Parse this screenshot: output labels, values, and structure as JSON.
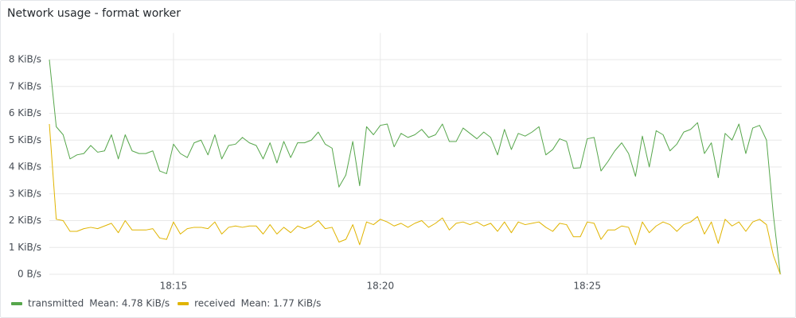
{
  "chart_data": {
    "type": "line",
    "title": "Network usage - format worker",
    "x": [
      720,
      730,
      740,
      750,
      760,
      770,
      780,
      790,
      800,
      810,
      820,
      830,
      840,
      850,
      860,
      870,
      880,
      890,
      900,
      910,
      920,
      930,
      940,
      950,
      960,
      970,
      980,
      990,
      1000,
      1010,
      1020,
      1030,
      1040,
      1050,
      1060,
      1070,
      1080,
      1090,
      1100,
      1110,
      1120,
      1130,
      1140,
      1150,
      1160,
      1170,
      1180,
      1190,
      1200,
      1210,
      1220,
      1230,
      1240,
      1250,
      1260,
      1270,
      1280,
      1290,
      1300,
      1310,
      1320,
      1330,
      1340,
      1350,
      1360,
      1370,
      1380,
      1390,
      1400,
      1410,
      1420,
      1430,
      1440,
      1450,
      1460,
      1470,
      1480,
      1490,
      1500,
      1510,
      1520,
      1530,
      1540,
      1550,
      1560,
      1570,
      1580,
      1590,
      1600,
      1610,
      1620,
      1630,
      1640,
      1650,
      1660,
      1670,
      1680,
      1690,
      1700,
      1710,
      1720,
      1730,
      1740,
      1750,
      1760,
      1770,
      1780
    ],
    "xlim": [
      720,
      1782
    ],
    "xticks": [
      {
        "value": 900,
        "label": "18:15"
      },
      {
        "value": 1200,
        "label": "18:20"
      },
      {
        "value": 1500,
        "label": "18:25"
      }
    ],
    "ylim": [
      0,
      8.4
    ],
    "yticks": [
      {
        "value": 0,
        "label": "0 B/s"
      },
      {
        "value": 1,
        "label": "1 KiB/s"
      },
      {
        "value": 2,
        "label": "2 KiB/s"
      },
      {
        "value": 3,
        "label": "3 KiB/s"
      },
      {
        "value": 4,
        "label": "4 KiB/s"
      },
      {
        "value": 5,
        "label": "5 KiB/s"
      },
      {
        "value": 6,
        "label": "6 KiB/s"
      },
      {
        "value": 7,
        "label": "7 KiB/s"
      },
      {
        "value": 8,
        "label": "8 KiB/s"
      }
    ],
    "grid": true,
    "legend": "bottom-left",
    "series": [
      {
        "name": "transmitted",
        "legend_stat": "Mean: 4.78 KiB/s",
        "color": "#56a64b",
        "values": [
          8.0,
          5.5,
          5.2,
          4.3,
          4.45,
          4.5,
          4.8,
          4.55,
          4.6,
          5.2,
          4.3,
          5.2,
          4.6,
          4.5,
          4.5,
          4.6,
          3.85,
          3.75,
          4.85,
          4.5,
          4.35,
          4.9,
          5.0,
          4.45,
          5.2,
          4.3,
          4.8,
          4.85,
          5.1,
          4.9,
          4.8,
          4.3,
          4.9,
          4.15,
          4.95,
          4.35,
          4.9,
          4.9,
          5.0,
          5.3,
          4.85,
          4.7,
          3.25,
          3.7,
          4.95,
          3.3,
          5.5,
          5.2,
          5.55,
          5.6,
          4.75,
          5.25,
          5.1,
          5.2,
          5.4,
          5.1,
          5.2,
          5.6,
          4.95,
          4.95,
          5.45,
          5.25,
          5.05,
          5.3,
          5.1,
          4.45,
          5.4,
          4.65,
          5.25,
          5.15,
          5.3,
          5.5,
          4.45,
          4.65,
          5.05,
          4.95,
          3.95,
          3.97,
          5.05,
          5.1,
          3.85,
          4.2,
          4.6,
          4.9,
          4.5,
          3.65,
          5.15,
          4.0,
          5.35,
          5.2,
          4.6,
          4.85,
          5.3,
          5.4,
          5.65,
          4.5,
          4.9,
          3.6,
          5.25,
          5.0,
          5.6,
          4.5,
          5.45,
          5.55,
          5.0,
          2.2,
          0.0
        ]
      },
      {
        "name": "received",
        "legend_stat": "Mean: 1.77 KiB/s",
        "color": "#e0b400",
        "values": [
          5.6,
          2.05,
          2.0,
          1.6,
          1.6,
          1.7,
          1.75,
          1.7,
          1.8,
          1.9,
          1.55,
          2.0,
          1.65,
          1.65,
          1.65,
          1.7,
          1.35,
          1.3,
          1.95,
          1.5,
          1.7,
          1.75,
          1.75,
          1.7,
          1.95,
          1.5,
          1.75,
          1.8,
          1.75,
          1.8,
          1.8,
          1.5,
          1.85,
          1.5,
          1.75,
          1.55,
          1.8,
          1.7,
          1.8,
          2.0,
          1.7,
          1.75,
          1.2,
          1.3,
          1.85,
          1.1,
          1.95,
          1.85,
          2.05,
          1.95,
          1.8,
          1.9,
          1.75,
          1.9,
          2.0,
          1.75,
          1.9,
          2.1,
          1.65,
          1.9,
          1.95,
          1.85,
          1.95,
          1.8,
          1.9,
          1.6,
          1.95,
          1.55,
          1.95,
          1.85,
          1.9,
          1.95,
          1.75,
          1.6,
          1.9,
          1.85,
          1.4,
          1.4,
          1.95,
          1.9,
          1.3,
          1.65,
          1.65,
          1.8,
          1.75,
          1.1,
          1.95,
          1.55,
          1.8,
          1.95,
          1.85,
          1.6,
          1.85,
          1.95,
          2.15,
          1.5,
          1.95,
          1.15,
          2.05,
          1.8,
          1.95,
          1.6,
          1.95,
          2.05,
          1.85,
          0.7,
          0.0
        ]
      }
    ]
  }
}
